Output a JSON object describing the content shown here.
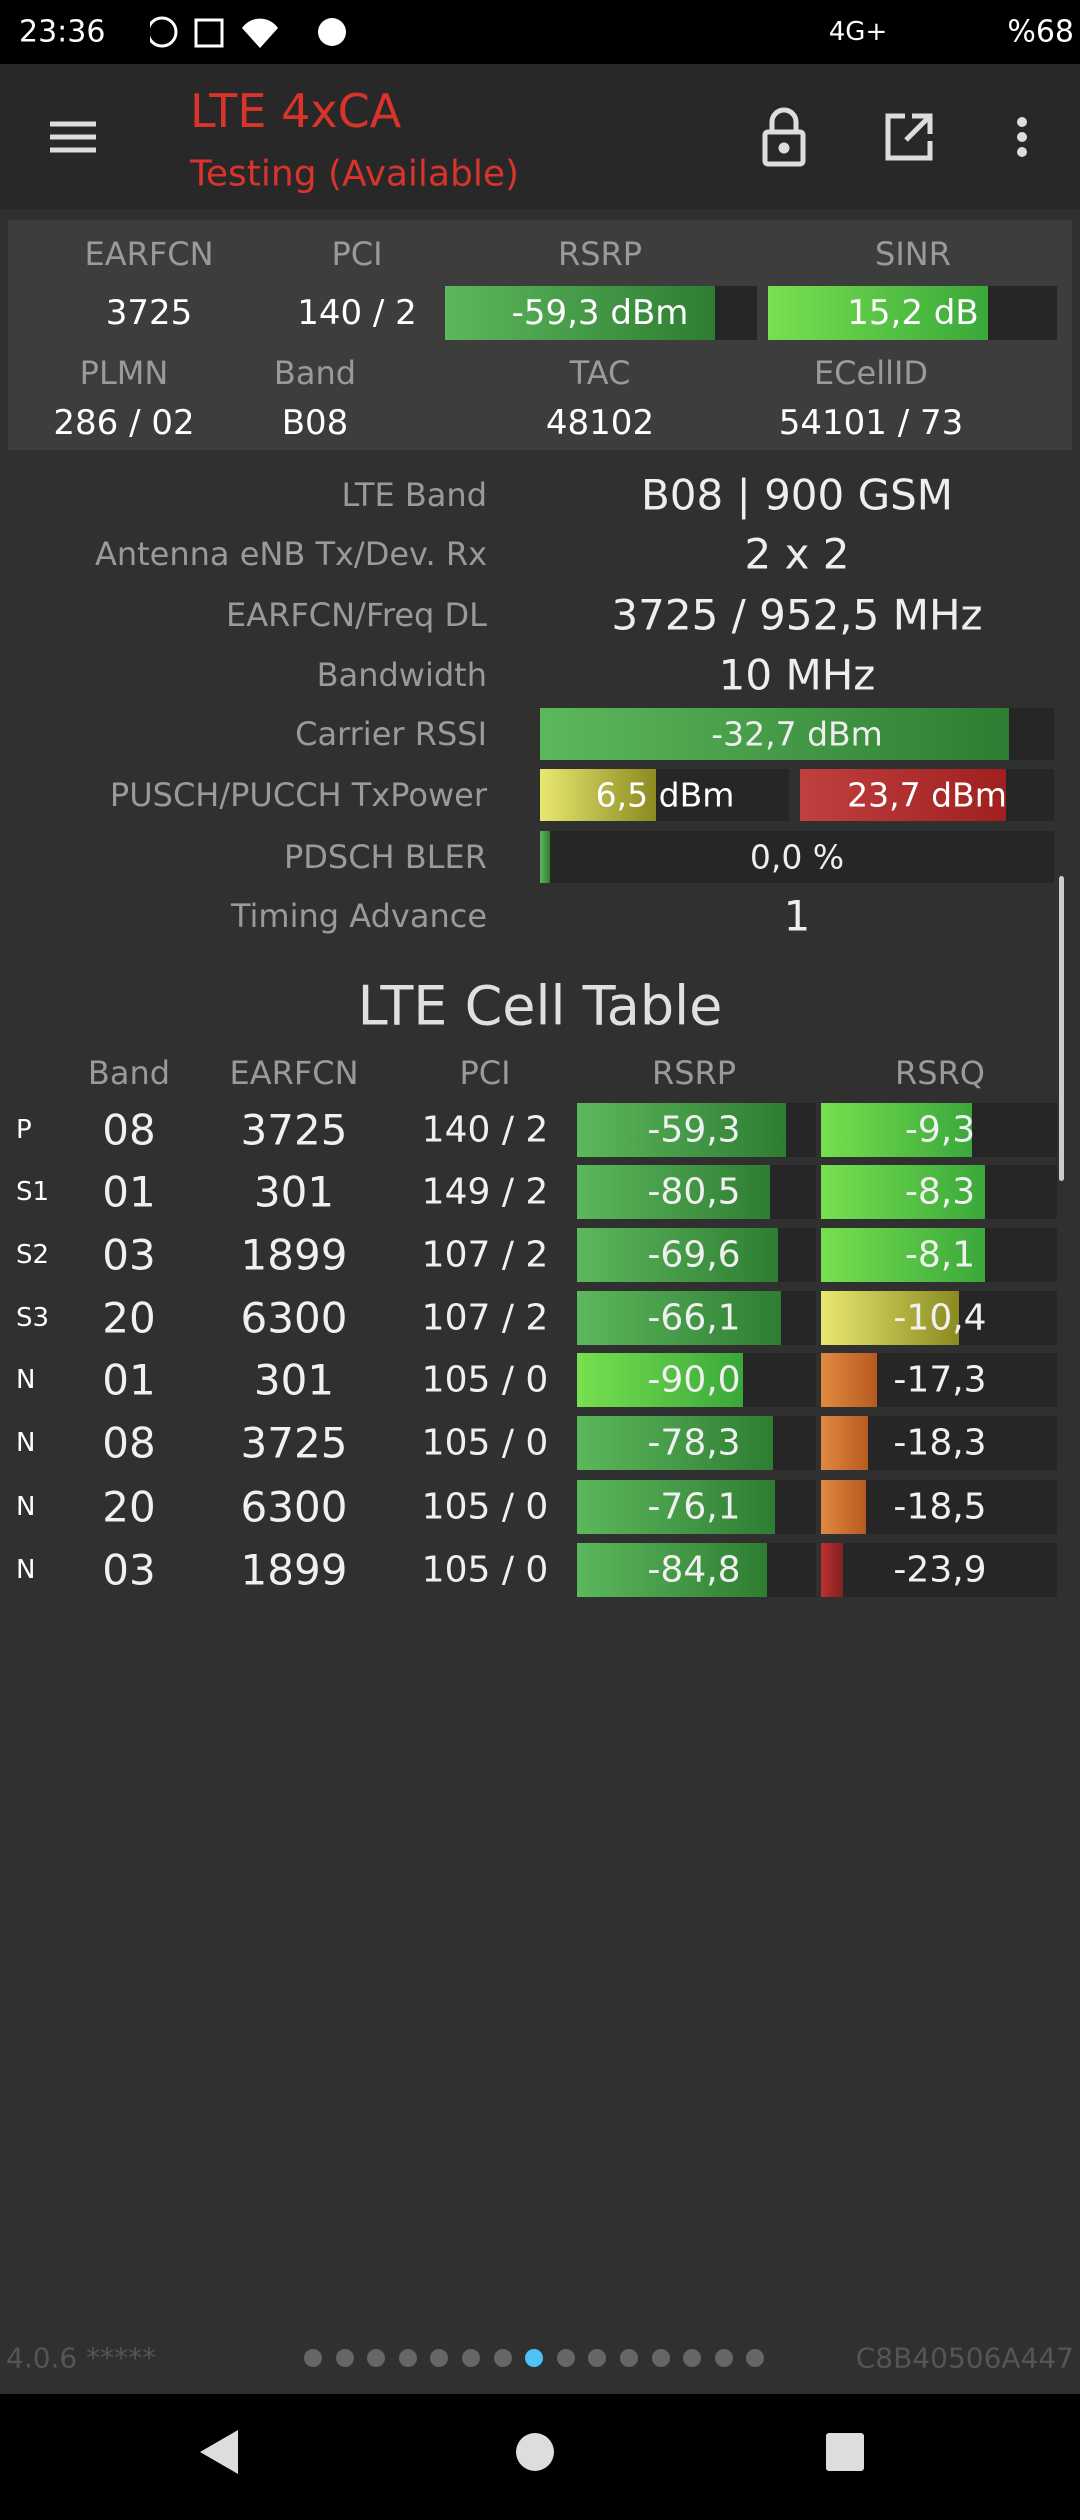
{
  "status_bar": {
    "time": "23:36",
    "network": "4G+",
    "battery": "%68"
  },
  "app_bar": {
    "title": "LTE 4xCA",
    "subtitle": "Testing (Available)"
  },
  "summary": {
    "headers_1": [
      "EARFCN",
      "PCI",
      "RSRP",
      "SINR"
    ],
    "row_1": [
      "3725",
      "140 / 2",
      "-59,3 dBm",
      "15,2 dB"
    ],
    "headers_2": [
      "PLMN",
      "Band",
      "TAC",
      "ECellID"
    ],
    "row_2": [
      "286 / 02",
      "B08",
      "48102",
      "54101 / 73"
    ]
  },
  "details": [
    {
      "label": "LTE Band",
      "values": [
        "B08 | 900 GSM"
      ]
    },
    {
      "label": "Antenna eNB Tx/Dev. Rx",
      "values": [
        "2 x 2"
      ]
    },
    {
      "label": "EARFCN/Freq DL",
      "values": [
        "3725 / 952,5 MHz"
      ]
    },
    {
      "label": "Bandwidth",
      "values": [
        "10 MHz"
      ]
    },
    {
      "label": "Carrier RSSI",
      "values": [
        "-32,7 dBm"
      ]
    },
    {
      "label": "PUSCH/PUCCH TxPower",
      "values": [
        "6,5 dBm",
        "23,7 dBm"
      ]
    },
    {
      "label": "PDSCH BLER",
      "values": [
        "0,0 %"
      ]
    },
    {
      "label": "Timing Advance",
      "values": [
        "1"
      ]
    }
  ],
  "cell_table": {
    "title": "LTE Cell Table",
    "columns": [
      "Band",
      "EARFCN",
      "PCI",
      "RSRP",
      "RSRQ"
    ],
    "rows": [
      {
        "type": "P",
        "cells": [
          "08",
          "3725",
          "140 / 2",
          "-59,3",
          "-9,3"
        ]
      },
      {
        "type": "S1",
        "cells": [
          "01",
          "301",
          "149 / 2",
          "-80,5",
          "-8,3"
        ]
      },
      {
        "type": "S2",
        "cells": [
          "03",
          "1899",
          "107 / 2",
          "-69,6",
          "-8,1"
        ]
      },
      {
        "type": "S3",
        "cells": [
          "20",
          "6300",
          "107 / 2",
          "-66,1",
          "-10,4"
        ]
      },
      {
        "type": "N",
        "cells": [
          "01",
          "301",
          "105 / 0",
          "-90,0",
          "-17,3"
        ]
      },
      {
        "type": "N",
        "cells": [
          "08",
          "3725",
          "105 / 0",
          "-78,3",
          "-18,3"
        ]
      },
      {
        "type": "N",
        "cells": [
          "20",
          "6300",
          "105 / 0",
          "-76,1",
          "-18,5"
        ]
      },
      {
        "type": "N",
        "cells": [
          "03",
          "1899",
          "105 / 0",
          "-84,8",
          "-23,9"
        ]
      }
    ]
  },
  "footer": {
    "version": "4.0.6 *****",
    "device_id": "C8B40506A447"
  }
}
